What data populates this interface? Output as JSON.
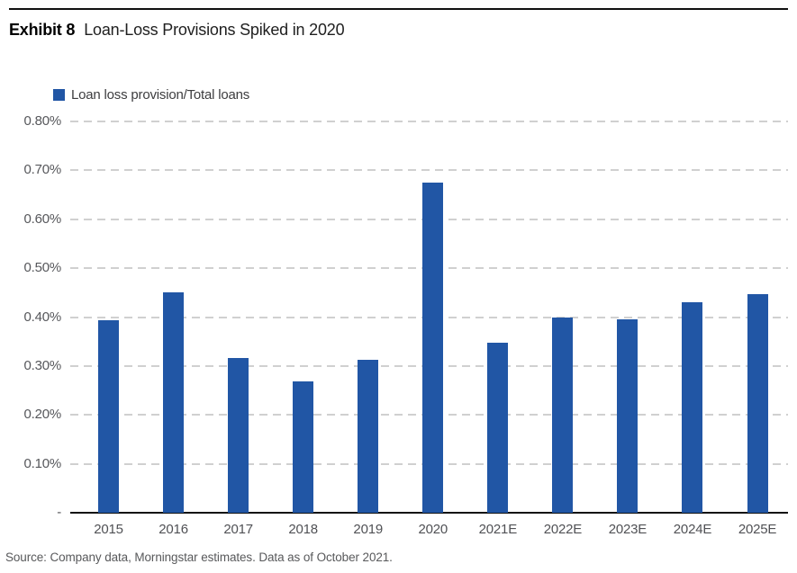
{
  "header": {
    "exhibit_label": "Exhibit 8",
    "title": "Loan-Loss Provisions Spiked in 2020"
  },
  "legend": {
    "items": [
      {
        "label": "Loan loss provision/Total loans",
        "color": "#2156A5"
      }
    ]
  },
  "chart_data": {
    "type": "bar",
    "title": "Loan-Loss Provisions Spiked in 2020",
    "series_name": "Loan loss provision/Total loans",
    "categories": [
      "2015",
      "2016",
      "2017",
      "2018",
      "2019",
      "2020",
      "2021E",
      "2022E",
      "2023E",
      "2024E",
      "2025E"
    ],
    "values": [
      0.393,
      0.45,
      0.317,
      0.268,
      0.313,
      0.675,
      0.347,
      0.399,
      0.396,
      0.43,
      0.447
    ],
    "unit": "percent",
    "xlabel": "",
    "ylabel": "",
    "ylim": [
      0,
      0.8
    ],
    "ytick_step": 0.1,
    "ytick_labels": [
      "0.80%",
      "0.70%",
      "0.60%",
      "0.50%",
      "0.40%",
      "0.30%",
      "0.20%",
      "0.10%",
      "-"
    ],
    "grid": "horizontal-dashed",
    "legend_position": "top-left",
    "bar_color": "#2156A5"
  },
  "footer": {
    "source": "Source: Company data, Morningstar estimates. Data as of October 2021."
  },
  "colors": {
    "bar": "#2156A5",
    "grid": "#D0D0D0",
    "axis_line": "#111111",
    "tick_text": "#56575B",
    "title_text": "#000000",
    "source_text": "#58595B",
    "top_rule": "#101010"
  }
}
